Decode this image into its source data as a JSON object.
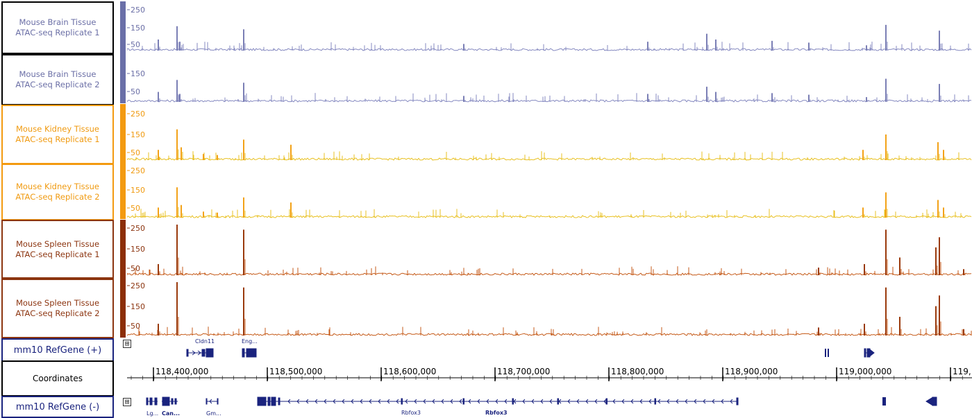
{
  "tracks": [
    {
      "label": "Mouse Brain Tissue\nATAC-seq Replicate 1",
      "color": "#7b7fb5",
      "strip_color": "#6a6fa8",
      "fill": "#8589c0",
      "scale": [
        "250",
        "150",
        "50"
      ],
      "text_color": "#6b6fa6"
    },
    {
      "label": "Mouse Brain Tissue\nATAC-seq Replicate 2",
      "color": "#7b7fb5",
      "strip_color": "#6a6fa8",
      "fill": "#8589c0",
      "scale": [
        "150",
        "50"
      ],
      "text_color": "#6b6fa6"
    },
    {
      "label": "Mouse Kidney Tissue\nATAC-seq Replicate 1",
      "color": "#f3a218",
      "strip_color": "#f39a10",
      "fill": "#e8c020",
      "scale": [
        "250",
        "150",
        "50"
      ],
      "text_color": "#f09a10"
    },
    {
      "label": "Mouse Kidney Tissue\nATAC-seq Replicate 2",
      "color": "#f3a218",
      "strip_color": "#f39a10",
      "fill": "#e8c020",
      "scale": [
        "250",
        "150",
        "50"
      ],
      "text_color": "#f09a10"
    },
    {
      "label": "Mouse Spleen Tissue\nATAC-seq Replicate 1",
      "color": "#9a3a0c",
      "strip_color": "#8c2e08",
      "fill": "#c55a18",
      "scale": [
        "250",
        "150",
        "50"
      ],
      "text_color": "#8c3510"
    },
    {
      "label": "Mouse Spleen Tissue\nATAC-seq Replicate 2",
      "color": "#9a3a0c",
      "strip_color": "#8c2e08",
      "fill": "#c55a18",
      "scale": [
        "250",
        "150",
        "50"
      ],
      "text_color": "#8c3510"
    }
  ],
  "refgene_plus": {
    "label": "mm10 RefGene (+)",
    "text_color": "#1a237e",
    "gene_labels": [
      "Cldn11",
      "Eng..."
    ]
  },
  "coordinates": {
    "label": "Coordinates",
    "ticks": [
      "118,400,000",
      "118,500,000",
      "118,600,000",
      "118,700,000",
      "118,800,000",
      "118,900,000",
      "119,000,000",
      "119,..."
    ]
  },
  "refgene_minus": {
    "label": "mm10 RefGene (-)",
    "text_color": "#1a237e",
    "gene_labels": [
      "Lg...",
      "Can...",
      "Gm...",
      "Rbfox3",
      "Rbfox3"
    ]
  },
  "icons": {
    "expand": "⊞"
  }
}
